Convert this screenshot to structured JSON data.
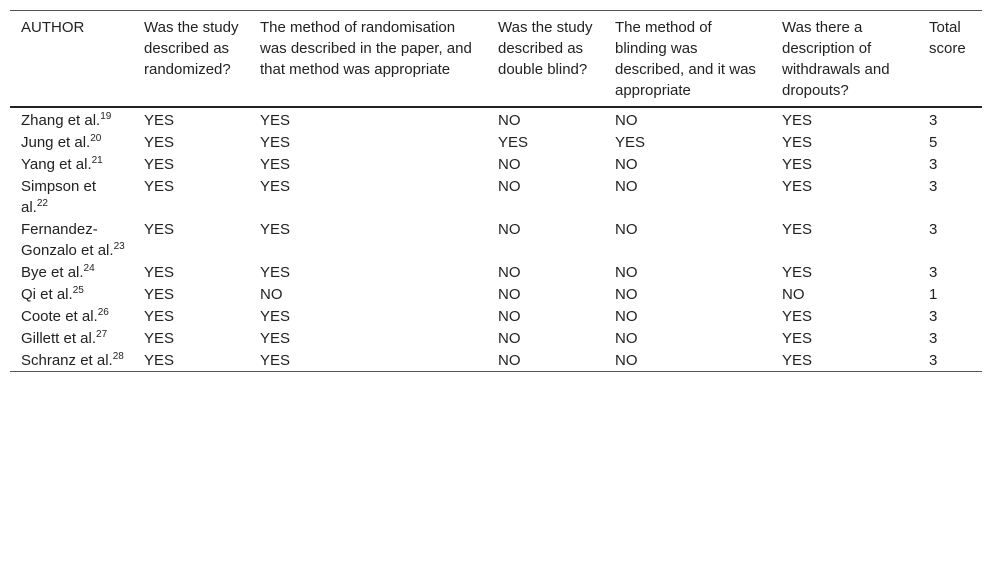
{
  "table": {
    "header": [
      "AUTHOR",
      "Was the study described as randomized?",
      "The method of randomisation was described in the paper, and that method was appropriate",
      "Was the study described as double blind?",
      "The method of blinding was described, and it was appropriate",
      "Was there a description of withdrawals and dropouts?",
      "Total score"
    ],
    "rows": [
      [
        {
          "text": "Zhang et al.",
          "ref": "19"
        },
        "YES",
        "YES",
        "NO",
        "NO",
        "YES",
        3
      ],
      [
        {
          "text": "Jung et al.",
          "ref": "20"
        },
        "YES",
        "YES",
        "YES",
        "YES",
        "YES",
        5
      ],
      [
        {
          "text": "Yang et al.",
          "ref": "21"
        },
        "YES",
        "YES",
        "NO",
        "NO",
        "YES",
        3
      ],
      [
        {
          "text": "Simpson et al.",
          "ref": "22"
        },
        "YES",
        "YES",
        "NO",
        "NO",
        "YES",
        3
      ],
      [
        {
          "text": "Fernandez-Gonzalo et al.",
          "ref": "23"
        },
        "YES",
        "YES",
        "NO",
        "NO",
        "YES",
        3
      ],
      [
        {
          "text": "Bye et al.",
          "ref": "24"
        },
        "YES",
        "YES",
        "NO",
        "NO",
        "YES",
        3
      ],
      [
        {
          "text": "Qi et al.",
          "ref": "25"
        },
        "YES",
        "NO",
        "NO",
        "NO",
        "NO",
        1
      ],
      [
        {
          "text": "Coote et al.",
          "ref": "26"
        },
        "YES",
        "YES",
        "NO",
        "NO",
        "YES",
        3
      ],
      [
        {
          "text": "Gillett et al.",
          "ref": "27"
        },
        "YES",
        "YES",
        "NO",
        "NO",
        "YES",
        3
      ],
      [
        {
          "text": "Schranz et al.",
          "ref": "28"
        },
        "YES",
        "YES",
        "NO",
        "NO",
        "YES",
        3
      ]
    ]
  }
}
